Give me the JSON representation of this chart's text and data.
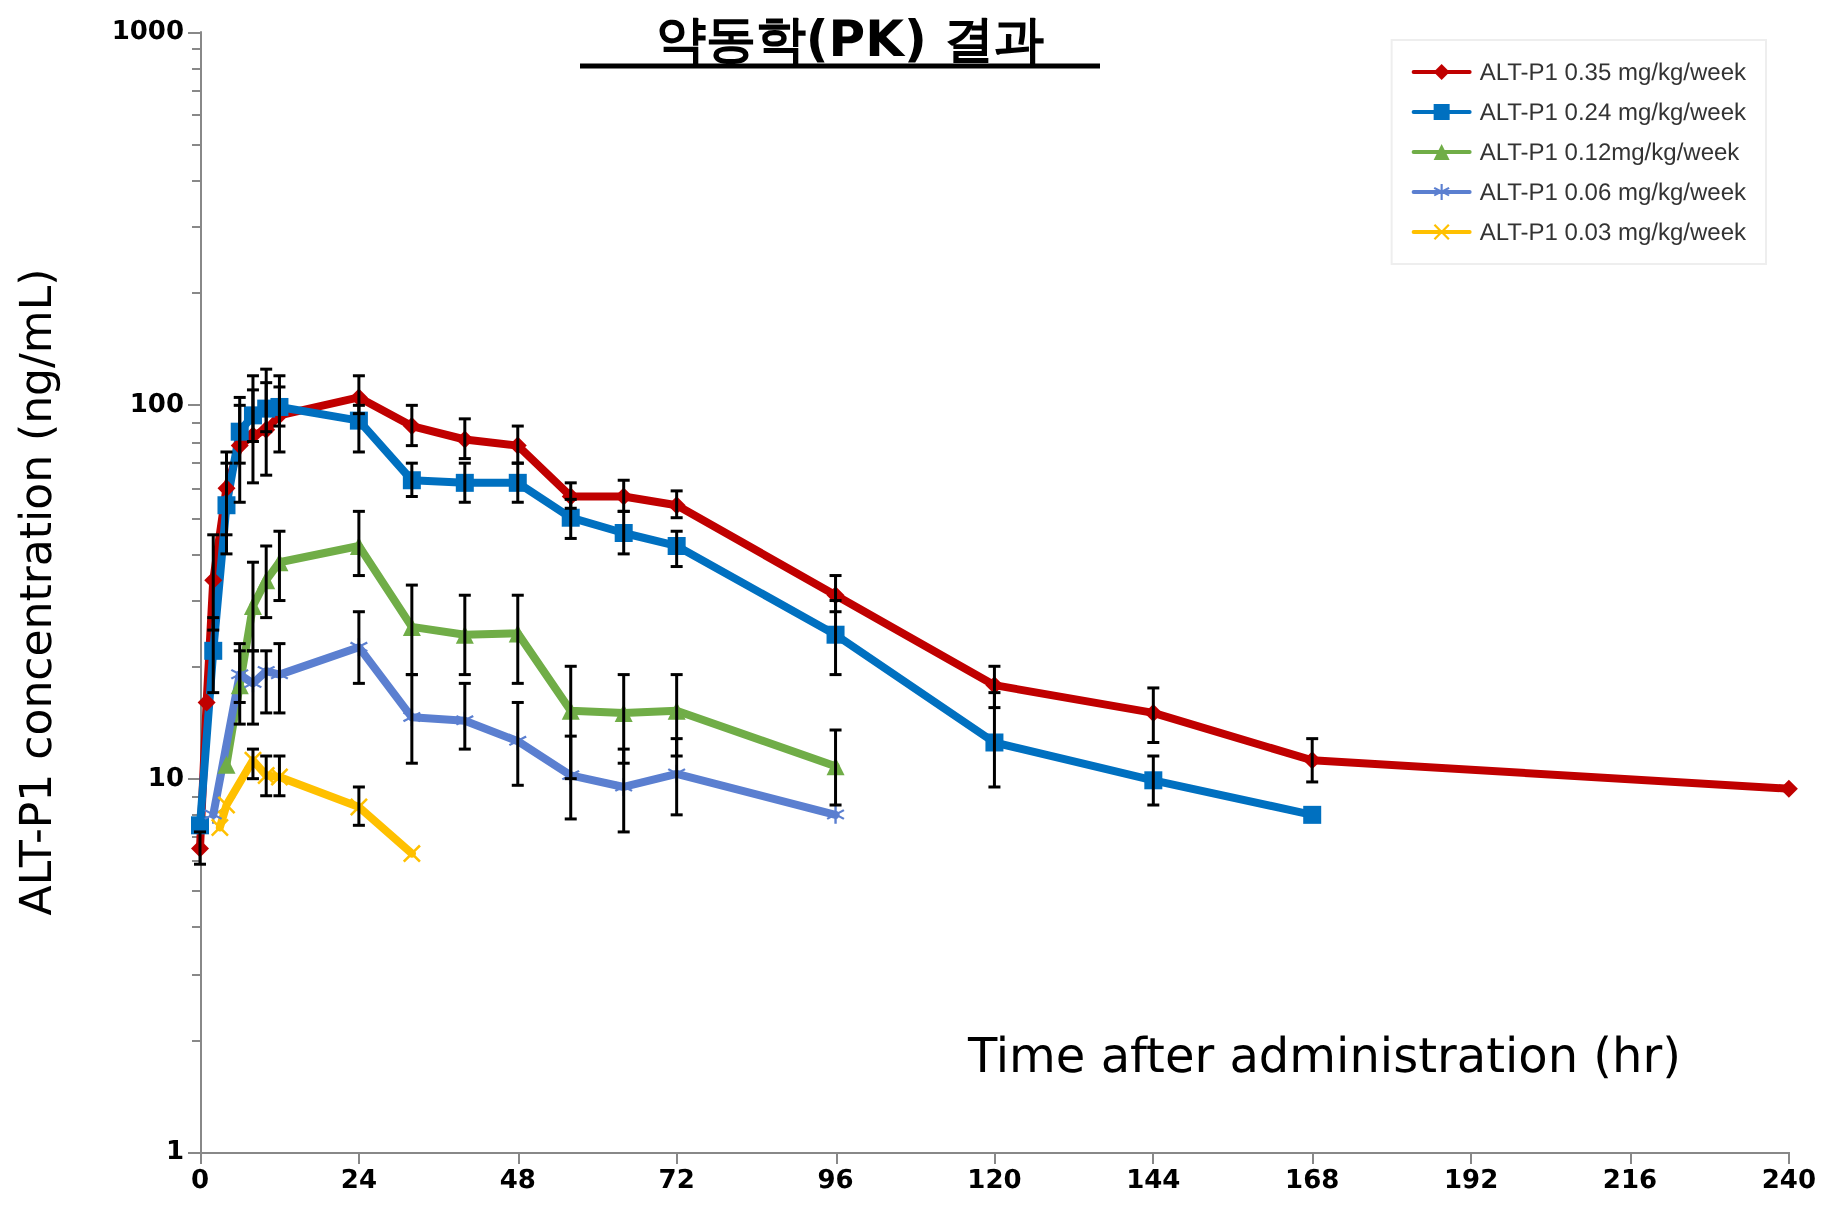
{
  "chart_data": {
    "type": "line",
    "title": "약동학(PK) 결과",
    "xlabel": "Time after administration (hr)",
    "ylabel": "ALT-P1 concentration (ng/mL)",
    "xlim": [
      0,
      240
    ],
    "xticks": [
      0,
      24,
      48,
      72,
      96,
      120,
      144,
      168,
      192,
      216,
      240
    ],
    "ylim": [
      1,
      1000
    ],
    "yticks": [
      1,
      10,
      100,
      1000
    ],
    "log": true,
    "grid": false,
    "legend": "top right",
    "line_style": "solid",
    "series": [
      {
        "name": "ALT-P1 0.35 mg/kg/week",
        "color": "#c00000",
        "marker": "diamond",
        "x": [
          0,
          1,
          2,
          4,
          6,
          8,
          10,
          12,
          24,
          32,
          40,
          48,
          56,
          64,
          72,
          96,
          120,
          144,
          168,
          240
        ],
        "values": [
          6.5,
          16,
          34,
          60,
          78,
          83,
          86,
          94,
          105,
          88,
          81,
          78,
          57,
          57,
          54,
          31,
          17.8,
          15,
          11.2,
          9.4
        ],
        "errors": [
          [
            5.9,
            7.2
          ],
          null,
          [
            25,
            45
          ],
          [
            45,
            75
          ],
          [
            55,
            105
          ],
          [
            62,
            120
          ],
          [
            65,
            125
          ],
          [
            75,
            120
          ],
          [
            95,
            120
          ],
          [
            78,
            100
          ],
          [
            72,
            92
          ],
          [
            70,
            88
          ],
          [
            53,
            62
          ],
          [
            52,
            63
          ],
          [
            50,
            59
          ],
          [
            28,
            35
          ],
          [
            15.5,
            20
          ],
          [
            12.5,
            17.5
          ],
          [
            9.8,
            12.8
          ],
          null
        ]
      },
      {
        "name": "ALT-P1 0.24 mg/kg/week",
        "color": "#0070c0",
        "marker": "square",
        "x": [
          0,
          2,
          4,
          6,
          8,
          10,
          12,
          24,
          32,
          40,
          48,
          56,
          64,
          72,
          96,
          120,
          144,
          168
        ],
        "values": [
          7.5,
          22,
          54,
          85,
          94,
          98,
          99,
          91,
          63,
          62,
          62,
          50,
          45.5,
          42,
          24.3,
          12.5,
          9.9,
          8.0
        ],
        "errors": [
          null,
          [
            17,
            27
          ],
          [
            40,
            70
          ],
          [
            70,
            100
          ],
          [
            80,
            110
          ],
          [
            85,
            115
          ],
          [
            88,
            112
          ],
          [
            75,
            100
          ],
          [
            57,
            70
          ],
          [
            55,
            70
          ],
          [
            55,
            70
          ],
          [
            44,
            56
          ],
          [
            40,
            52
          ],
          [
            37,
            46
          ],
          [
            19,
            30
          ],
          [
            9.5,
            17
          ],
          [
            8.5,
            11.5
          ],
          null
        ]
      },
      {
        "name": "ALT-P1 0.12mg/kg/week",
        "color": "#70ad47",
        "marker": "triangle",
        "x": [
          4,
          6,
          8,
          10,
          12,
          24,
          32,
          40,
          48,
          56,
          64,
          72,
          96
        ],
        "values": [
          10.9,
          17.8,
          29,
          34,
          38,
          42,
          25.5,
          24.3,
          24.5,
          15.2,
          15,
          15.2,
          10.8
        ],
        "errors": [
          null,
          [
            14,
            22
          ],
          [
            22,
            38
          ],
          [
            27,
            42
          ],
          [
            30,
            46
          ],
          [
            35,
            52
          ],
          [
            19,
            33
          ],
          [
            19,
            31
          ],
          [
            18,
            31
          ],
          [
            10,
            20
          ],
          [
            11,
            19
          ],
          [
            11.5,
            19
          ],
          [
            8.5,
            13.5
          ]
        ]
      },
      {
        "name": "ALT-P1 0.06 mg/kg/week",
        "color": "#5b7fd0",
        "marker": "star",
        "x": [
          2,
          6,
          8,
          10,
          12,
          24,
          32,
          40,
          48,
          56,
          64,
          72,
          96
        ],
        "values": [
          8,
          19,
          18,
          19.4,
          19,
          22.5,
          14.6,
          14.3,
          12.6,
          10.2,
          9.5,
          10.3,
          8.0
        ],
        "errors": [
          null,
          [
            16,
            23
          ],
          [
            14,
            22
          ],
          [
            15,
            22
          ],
          [
            15,
            23
          ],
          [
            18,
            28
          ],
          [
            11,
            19
          ],
          [
            12,
            18
          ],
          [
            9.6,
            16
          ],
          [
            7.8,
            13
          ],
          [
            7.2,
            12
          ],
          [
            8,
            12.8
          ],
          null
        ]
      },
      {
        "name": "ALT-P1 0.03 mg/kg/week",
        "color": "#ffc000",
        "marker": "cross",
        "x": [
          3,
          4,
          8,
          10,
          12,
          24,
          32
        ],
        "values": [
          7.4,
          8.5,
          11.2,
          10.2,
          10.1,
          8.4,
          6.3
        ],
        "errors": [
          null,
          null,
          [
            10,
            12
          ],
          [
            9,
            11.5
          ],
          [
            9,
            11.5
          ],
          [
            7.5,
            9.5
          ],
          null
        ]
      }
    ]
  }
}
